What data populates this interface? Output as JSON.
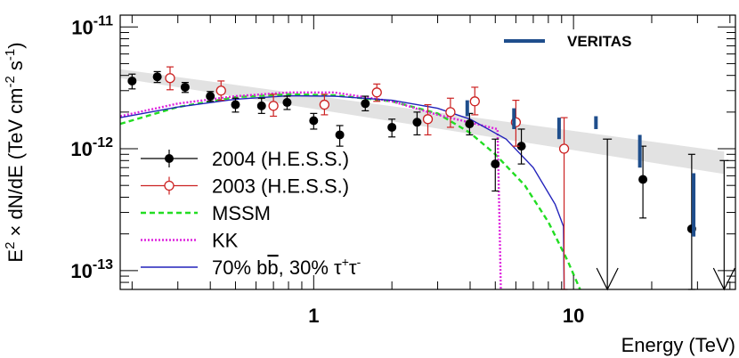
{
  "chart_data": {
    "type": "scatter",
    "xlabel": "Energy (TeV)",
    "ylabel_parts": [
      "E",
      "2",
      " × dN/dE (TeV cm",
      "-2",
      " s",
      "-1",
      ")"
    ],
    "x_scale": "log",
    "y_scale": "log",
    "xlim": [
      0.18,
      42
    ],
    "ylim": [
      7e-14,
      1.25e-11
    ],
    "x_tick_labels": [
      {
        "value": 1,
        "text": "1"
      },
      {
        "value": 10,
        "text": "10"
      }
    ],
    "y_tick_labels": [
      {
        "value": 1e-13,
        "base": "10",
        "exp": "-13"
      },
      {
        "value": 1e-12,
        "base": "10",
        "exp": "-12"
      },
      {
        "value": 1e-11,
        "base": "10",
        "exp": "-11"
      }
    ],
    "band": {
      "color": "#e2e2e2",
      "upper": [
        [
          0.18,
          4.5e-12
        ],
        [
          38,
          9.5e-13
        ]
      ],
      "lower": [
        [
          0.18,
          3.8e-12
        ],
        [
          38,
          6.2e-13
        ]
      ]
    },
    "series": [
      {
        "name": "2004 (H.E.S.S.)",
        "marker": "filled-circle",
        "color": "#000000",
        "points": [
          {
            "x": 0.2,
            "y": 3.6e-12,
            "ylo": 3.1e-12,
            "yhi": 4.1e-12
          },
          {
            "x": 0.25,
            "y": 3.9e-12,
            "ylo": 3.5e-12,
            "yhi": 4.3e-12
          },
          {
            "x": 0.32,
            "y": 3.2e-12,
            "ylo": 2.9e-12,
            "yhi": 3.5e-12
          },
          {
            "x": 0.4,
            "y": 2.7e-12,
            "ylo": 2.45e-12,
            "yhi": 2.95e-12
          },
          {
            "x": 0.5,
            "y": 2.3e-12,
            "ylo": 2e-12,
            "yhi": 2.6e-12
          },
          {
            "x": 0.63,
            "y": 2.25e-12,
            "ylo": 1.95e-12,
            "yhi": 2.6e-12
          },
          {
            "x": 0.79,
            "y": 2.4e-12,
            "ylo": 2.1e-12,
            "yhi": 2.7e-12
          },
          {
            "x": 1.0,
            "y": 1.7e-12,
            "ylo": 1.45e-12,
            "yhi": 1.95e-12
          },
          {
            "x": 1.26,
            "y": 1.3e-12,
            "ylo": 1.05e-12,
            "yhi": 1.55e-12
          },
          {
            "x": 1.58,
            "y": 2.35e-12,
            "ylo": 2.05e-12,
            "yhi": 2.7e-12
          },
          {
            "x": 2.0,
            "y": 1.5e-12,
            "ylo": 1.25e-12,
            "yhi": 1.75e-12
          },
          {
            "x": 2.5,
            "y": 1.65e-12,
            "ylo": 1.3e-12,
            "yhi": 2e-12
          },
          {
            "x": 3.98,
            "y": 1.6e-12,
            "ylo": 1.3e-12,
            "yhi": 1.95e-12
          },
          {
            "x": 5.0,
            "y": 7.5e-13,
            "ylo": 4.5e-13,
            "yhi": 1.2e-12
          },
          {
            "x": 6.3,
            "y": 1.05e-12,
            "ylo": 7.5e-13,
            "yhi": 1.45e-12
          },
          {
            "x": 18.5,
            "y": 5.6e-13,
            "ylo": 2.7e-13,
            "yhi": 1.05e-12
          },
          {
            "x": 28.5,
            "y": 2.2e-13,
            "ylo": 7e-14,
            "yhi": 9e-13
          }
        ]
      },
      {
        "name": "2003 (H.E.S.S.)",
        "marker": "open-circle",
        "color": "#cc2222",
        "points": [
          {
            "x": 0.28,
            "y": 3.8e-12,
            "ylo": 3.05e-12,
            "yhi": 4.7e-12
          },
          {
            "x": 0.44,
            "y": 3e-12,
            "ylo": 2.5e-12,
            "yhi": 3.6e-12
          },
          {
            "x": 0.7,
            "y": 2.25e-12,
            "ylo": 1.85e-12,
            "yhi": 2.8e-12
          },
          {
            "x": 1.1,
            "y": 2.3e-12,
            "ylo": 1.9e-12,
            "yhi": 2.8e-12
          },
          {
            "x": 1.75,
            "y": 2.9e-12,
            "ylo": 2.45e-12,
            "yhi": 3.4e-12
          },
          {
            "x": 2.75,
            "y": 1.75e-12,
            "ylo": 1.3e-12,
            "yhi": 2.3e-12
          },
          {
            "x": 3.36,
            "y": 2e-12,
            "ylo": 1.5e-12,
            "yhi": 2.6e-12
          },
          {
            "x": 4.17,
            "y": 2.45e-12,
            "ylo": 1.9e-12,
            "yhi": 3.2e-12
          },
          {
            "x": 6.0,
            "y": 1.65e-12,
            "ylo": 1.05e-12,
            "yhi": 2.5e-12
          },
          {
            "x": 9.2,
            "y": 1e-12,
            "ylo": 7e-14,
            "yhi": 1.8e-12
          }
        ]
      },
      {
        "name": "VERITAS",
        "marker": "vertical-bar",
        "color": "#1f4e8c",
        "points": [
          {
            "x": 3.9,
            "ylo": 1.85e-12,
            "yhi": 2.5e-12
          },
          {
            "x": 5.9,
            "ylo": 1.45e-12,
            "yhi": 2.15e-12
          },
          {
            "x": 8.8,
            "ylo": 1.2e-12,
            "yhi": 1.8e-12
          },
          {
            "x": 12.2,
            "ylo": 1.45e-12,
            "yhi": 1.85e-12
          },
          {
            "x": 18.0,
            "ylo": 7e-13,
            "yhi": 1.3e-12
          },
          {
            "x": 29.0,
            "ylo": 1.9e-13,
            "yhi": 6.3e-13
          }
        ]
      },
      {
        "name": "MSSM",
        "line": "dashed",
        "color": "#22dd22",
        "points": [
          [
            0.18,
            1.6e-12
          ],
          [
            0.3,
            2.2e-12
          ],
          [
            0.5,
            2.65e-12
          ],
          [
            0.8,
            2.8e-12
          ],
          [
            1.2,
            2.75e-12
          ],
          [
            2.0,
            2.45e-12
          ],
          [
            3.0,
            1.95e-12
          ],
          [
            4.0,
            1.35e-12
          ],
          [
            5.0,
            9e-13
          ],
          [
            6.5,
            5e-13
          ],
          [
            8.0,
            2.5e-13
          ],
          [
            9.5,
            1.2e-13
          ],
          [
            10.6,
            7e-14
          ]
        ]
      },
      {
        "name": "KK",
        "line": "dotted",
        "color": "#dd22dd",
        "points": [
          [
            0.18,
            1.85e-12
          ],
          [
            0.3,
            2.35e-12
          ],
          [
            0.5,
            2.7e-12
          ],
          [
            0.8,
            2.9e-12
          ],
          [
            1.2,
            2.9e-12
          ],
          [
            2.0,
            2.45e-12
          ],
          [
            3.0,
            1.9e-12
          ],
          [
            4.2,
            1.6e-12
          ],
          [
            5.1,
            1.45e-12
          ],
          [
            5.2,
            2e-13
          ],
          [
            5.25,
            7e-14
          ]
        ]
      },
      {
        "name": "70% bb̄, 30% τ⁺τ⁻",
        "line": "solid",
        "color": "#2222bb",
        "points": [
          [
            0.18,
            1.8e-12
          ],
          [
            0.3,
            2.2e-12
          ],
          [
            0.5,
            2.55e-12
          ],
          [
            0.8,
            2.72e-12
          ],
          [
            1.2,
            2.7e-12
          ],
          [
            2.0,
            2.5e-12
          ],
          [
            3.0,
            2.15e-12
          ],
          [
            4.0,
            1.75e-12
          ],
          [
            5.5,
            1.2e-12
          ],
          [
            7.0,
            7e-13
          ],
          [
            8.5,
            3.5e-13
          ],
          [
            9.15,
            2.3e-13
          ],
          [
            9.2,
            7e-14
          ]
        ]
      }
    ],
    "upper_limits": [
      {
        "x": 13.5,
        "y": 1.2e-12
      },
      {
        "x": 38,
        "y": 8e-13
      }
    ],
    "legend": {
      "placement": "left",
      "entries": [
        {
          "label_parts": [
            "2004 (H.E.S.S.)"
          ],
          "style": "filled-circle",
          "color": "#000000"
        },
        {
          "label_parts": [
            "2003 (H.E.S.S.)"
          ],
          "style": "open-circle",
          "color": "#cc2222"
        },
        {
          "label_parts": [
            "MSSM"
          ],
          "style": "dashed",
          "color": "#22dd22"
        },
        {
          "label_parts": [
            "KK"
          ],
          "style": "dotted",
          "color": "#dd22dd"
        },
        {
          "label_parts": [
            "70% b",
            "b",
            ", 30% τ",
            "+",
            "τ",
            "-"
          ],
          "style": "solid",
          "color": "#2222bb"
        }
      ]
    },
    "veritas_label": "VERITAS"
  }
}
